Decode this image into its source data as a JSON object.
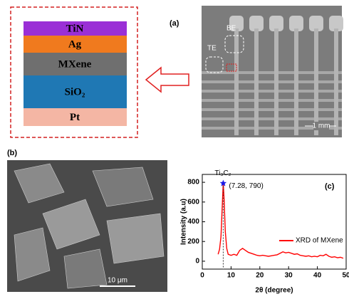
{
  "stack": {
    "layers": [
      {
        "name": "TiN",
        "color": "#9a2fd6"
      },
      {
        "name": "Ag",
        "color": "#f07a1e"
      },
      {
        "name": "MXene",
        "color": "#6f6f6f"
      },
      {
        "name": "SiO₂",
        "color": "#1f78b4"
      },
      {
        "name": "Pt",
        "color": "#f4b6a4"
      }
    ]
  },
  "panel_a": {
    "label": "(a)",
    "electrodes": [
      "TE",
      "BE"
    ],
    "scale_bar": "1 mm"
  },
  "panel_b": {
    "label": "(b)",
    "scale_bar": "10 μm"
  },
  "chart_data": {
    "type": "line",
    "panel_label": "(c)",
    "xlabel": "2θ (degree)",
    "ylabel": "Intensity (a.u)",
    "x": [
      5.5,
      6,
      6.5,
      7,
      7.28,
      7.6,
      8,
      8.5,
      9,
      10,
      11,
      12,
      13,
      14,
      15,
      16,
      17,
      18,
      19,
      20,
      21,
      22,
      23,
      24,
      25,
      26,
      27,
      28,
      29,
      30,
      31,
      32,
      33,
      34,
      35,
      36,
      37,
      38,
      39,
      40,
      41,
      42,
      43,
      44,
      45,
      46,
      47,
      48,
      49
    ],
    "series": [
      {
        "name": "XRD of MXene",
        "color": "#ff0000",
        "values": [
          70,
          120,
          250,
          600,
          790,
          620,
          300,
          130,
          70,
          60,
          70,
          60,
          110,
          130,
          110,
          90,
          80,
          70,
          60,
          55,
          60,
          55,
          50,
          55,
          60,
          65,
          80,
          95,
          85,
          90,
          80,
          70,
          75,
          60,
          55,
          50,
          55,
          45,
          50,
          45,
          60,
          55,
          70,
          50,
          40,
          45,
          35,
          40,
          30
        ]
      }
    ],
    "xlim": [
      0,
      50
    ],
    "ylim": [
      -80,
      880
    ],
    "xticks": [
      0,
      10,
      20,
      30,
      40,
      50
    ],
    "yticks": [
      0,
      200,
      400,
      600,
      800
    ],
    "peak": {
      "name": "Ti₃C₂",
      "x": 7.28,
      "y": 790,
      "label": "(7.28, 790)",
      "color": "#1a1ae6"
    }
  }
}
